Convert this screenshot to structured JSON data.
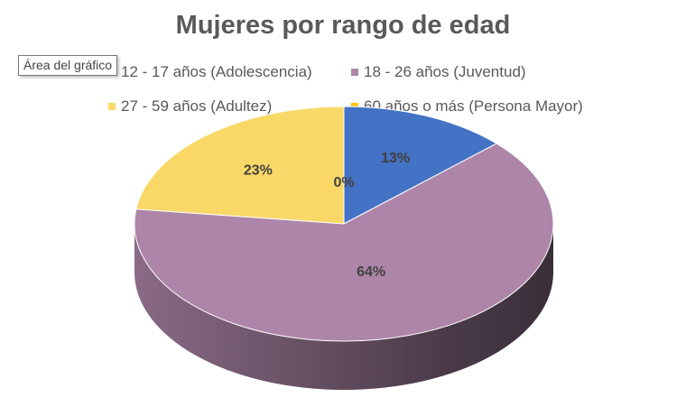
{
  "chart_data": {
    "type": "pie",
    "title": "Mujeres por rango de edad",
    "categories": [
      "12 - 17 años (Adolescencia)",
      "18 - 26 años (Juventud)",
      "27 - 59 años (Adultez)",
      "60 años o más (Persona Mayor)"
    ],
    "values": [
      13,
      64,
      23,
      0
    ],
    "data_labels": [
      "13%",
      "64%",
      "23%",
      "0%"
    ],
    "colors": [
      "#4472C4",
      "#AD85A8",
      "#F9D868",
      "#FFC000"
    ],
    "legend_position": "top",
    "style": "3d"
  },
  "tooltip": "Área del gráfico"
}
